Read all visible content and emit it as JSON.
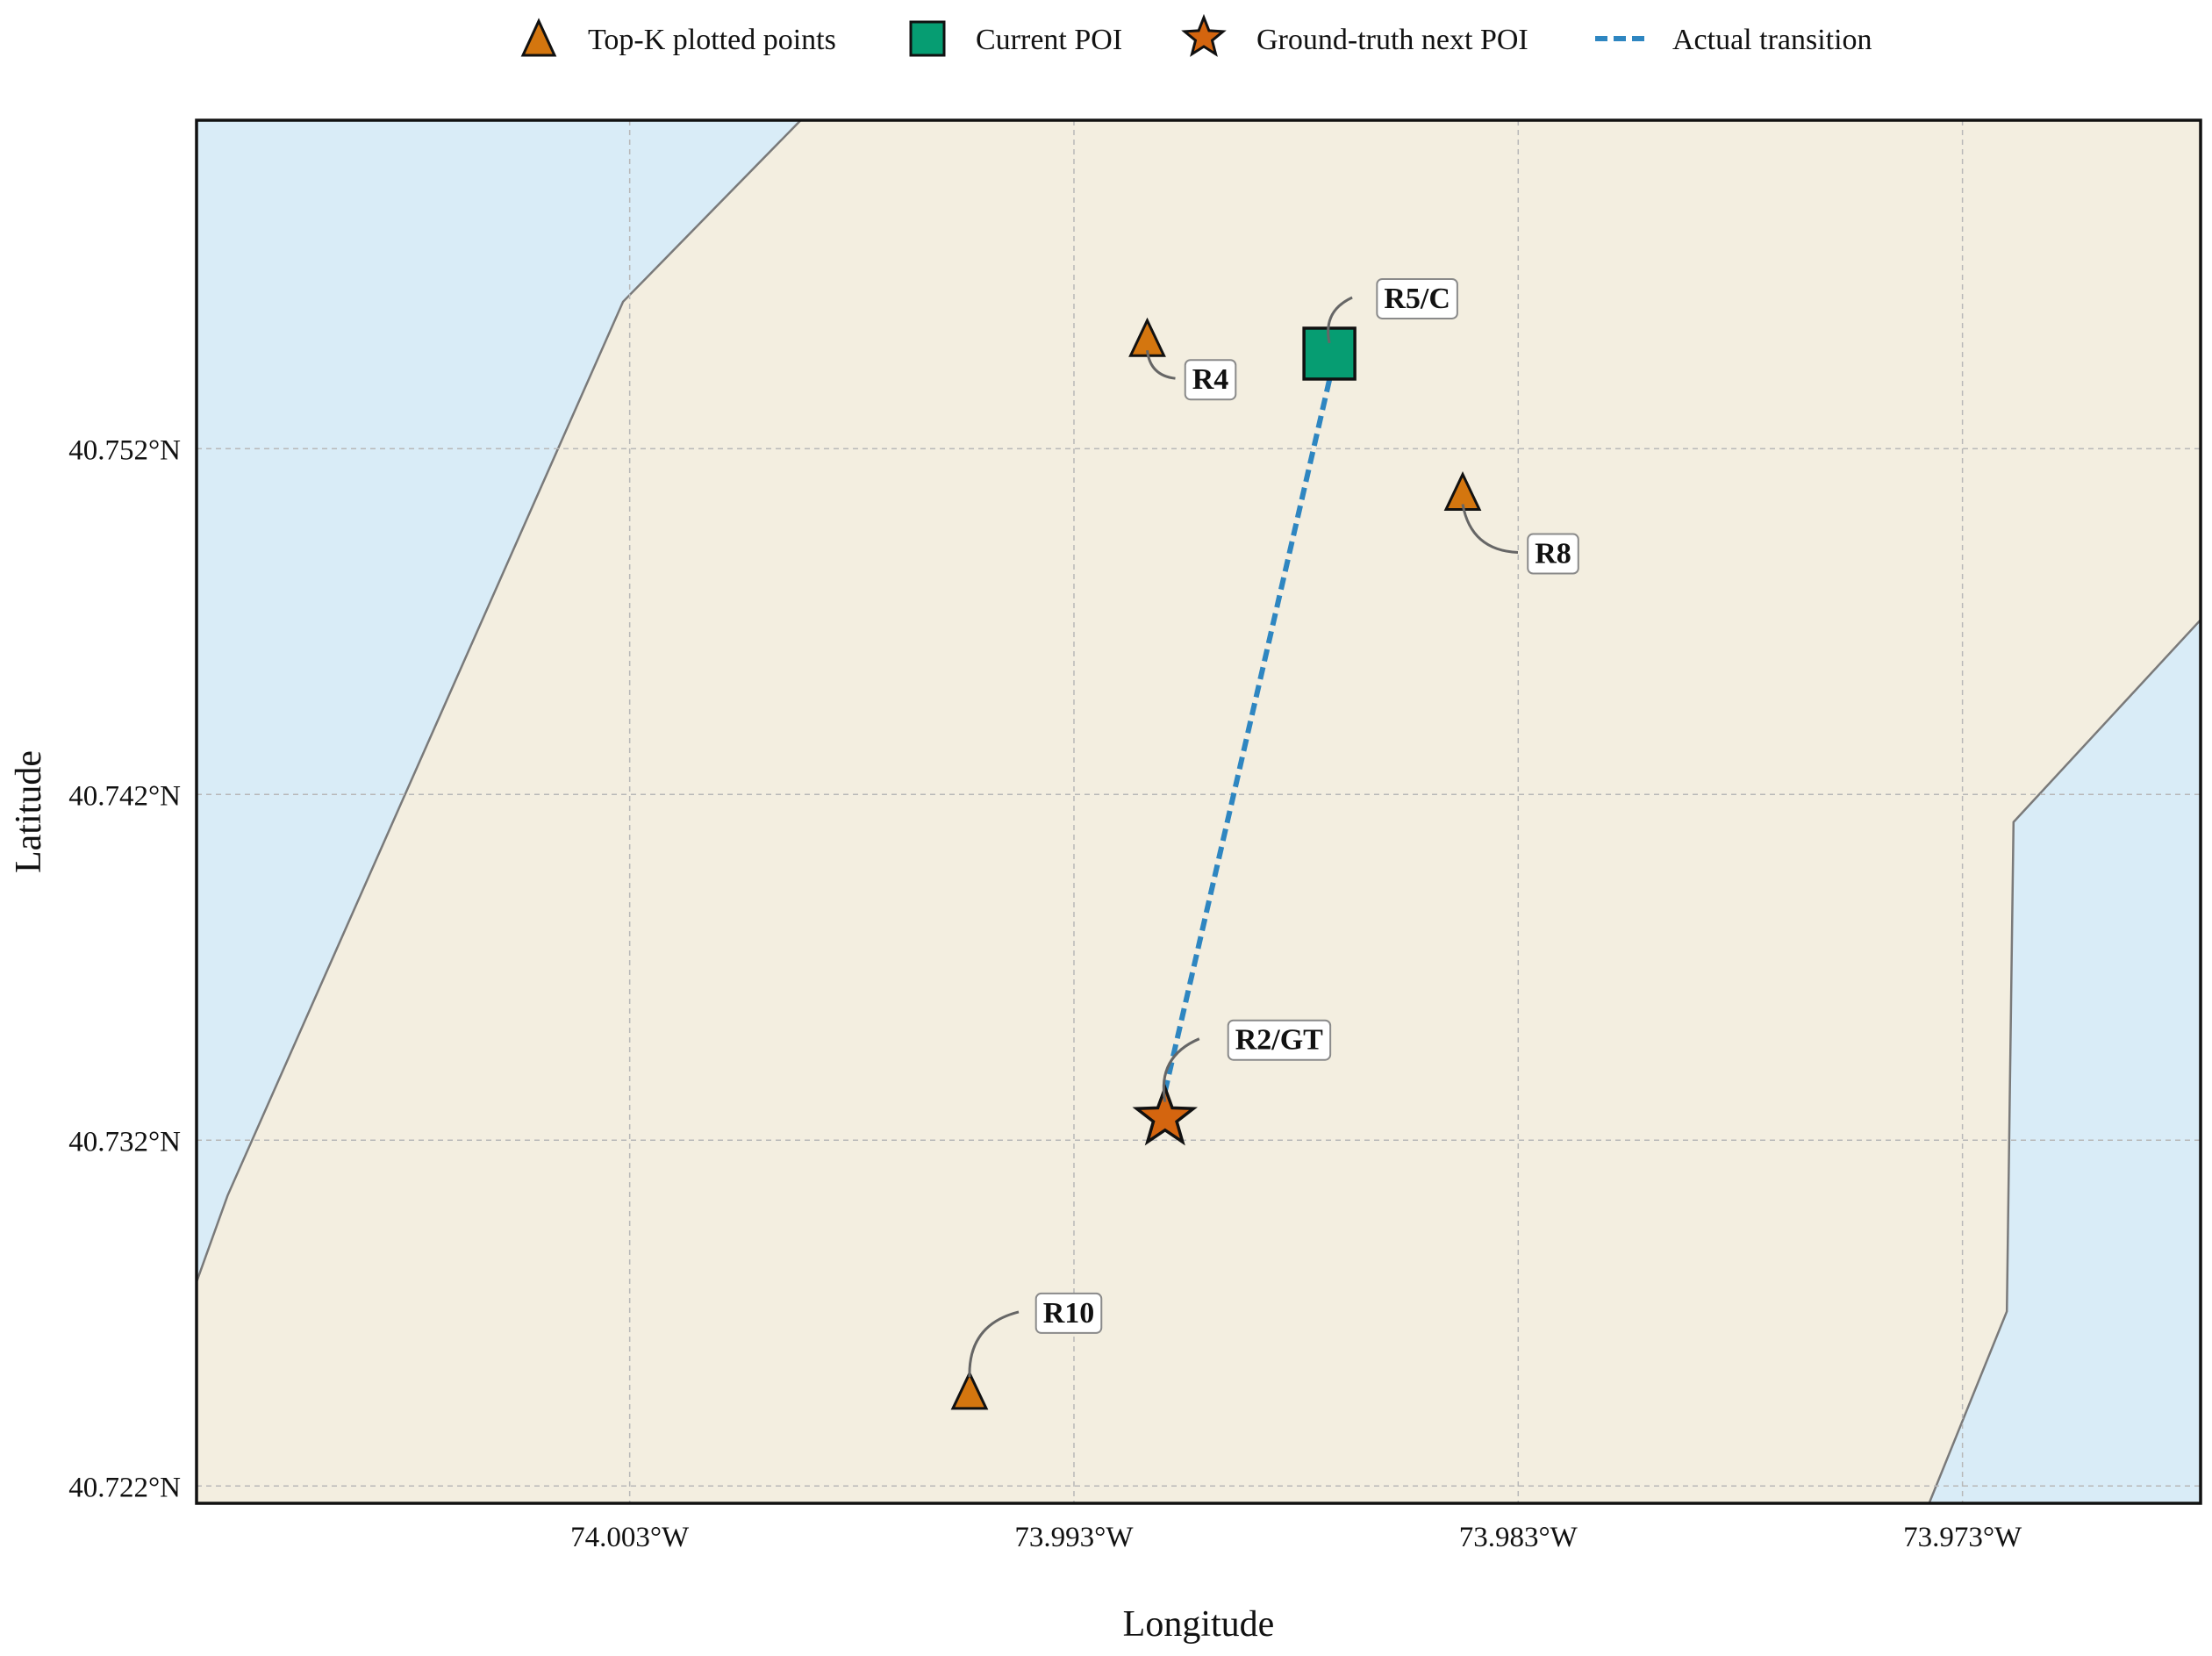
{
  "legend": {
    "items": [
      {
        "label": "Top-K plotted points",
        "marker": "triangle",
        "color": "#d4760f"
      },
      {
        "label": "Current POI",
        "marker": "square",
        "color": "#069d72"
      },
      {
        "label": "Ground-truth next POI",
        "marker": "star",
        "color": "#d4650f"
      },
      {
        "label": "Actual transition",
        "marker": "dashed-line",
        "color": "#2e86c1"
      }
    ]
  },
  "axes": {
    "xlabel": "Longitude",
    "ylabel": "Latitude",
    "xlim": [
      -74.01275,
      -73.96764
    ],
    "ylim": [
      40.7215,
      40.7615
    ],
    "xticks": [
      {
        "value": -74.003,
        "label": "74.003°W"
      },
      {
        "value": -73.993,
        "label": "73.993°W"
      },
      {
        "value": -73.983,
        "label": "73.983°W"
      },
      {
        "value": -73.973,
        "label": "73.973°W"
      }
    ],
    "yticks": [
      {
        "value": 40.722,
        "label": "40.722°N"
      },
      {
        "value": 40.732,
        "label": "40.732°N"
      },
      {
        "value": 40.742,
        "label": "40.742°N"
      },
      {
        "value": 40.752,
        "label": "40.752°N"
      }
    ],
    "grid": true
  },
  "colors": {
    "land": "#f3eee0",
    "water": "#d9ecf7",
    "coastline": "#7a7a7a",
    "grid": "#b8b8b8",
    "frame": "#111111",
    "transition": "#2e86c1",
    "triangle": "#d4760f",
    "square": "#069d72",
    "star": "#d4650f"
  },
  "map": {
    "water_west": [
      [
        -74.01275,
        40.7615
      ],
      [
        -73.99915,
        40.7615
      ],
      [
        -74.00315,
        40.75625
      ],
      [
        -74.01205,
        40.7304
      ],
      [
        -74.01275,
        40.7279
      ]
    ],
    "water_east": [
      [
        -73.96764,
        40.74705
      ],
      [
        -73.97185,
        40.7412
      ],
      [
        -73.972,
        40.72705
      ],
      [
        -73.97375,
        40.7215
      ],
      [
        -73.96764,
        40.7215
      ]
    ]
  },
  "pois": [
    {
      "id": "R4",
      "label": "R4",
      "type": "topk",
      "lon": -73.99135,
      "lat": 40.75515
    },
    {
      "id": "R5C",
      "label": "R5/C",
      "type": "current",
      "lon": -73.98725,
      "lat": 40.75475
    },
    {
      "id": "R8",
      "label": "R8",
      "type": "topk",
      "lon": -73.98425,
      "lat": 40.7507
    },
    {
      "id": "R2GT",
      "label": "R2/GT",
      "type": "ground_truth",
      "lon": -73.99095,
      "lat": 40.73265
    },
    {
      "id": "R10",
      "label": "R10",
      "type": "topk",
      "lon": -73.99535,
      "lat": 40.7247
    }
  ],
  "transition": {
    "from": "R5C",
    "to": "R2GT"
  }
}
